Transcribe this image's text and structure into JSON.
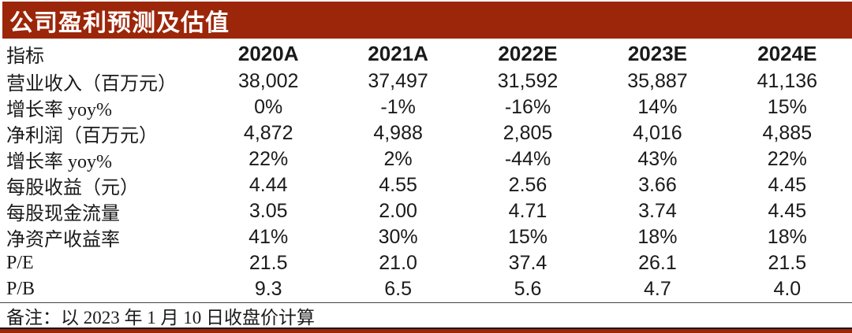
{
  "title": "公司盈利预测及估值",
  "colors": {
    "accent_red": "#9C2609",
    "divider_black": "#14141e"
  },
  "table": {
    "header": [
      "指标",
      "2020A",
      "2021A",
      "2022E",
      "2023E",
      "2024E"
    ],
    "rows": [
      {
        "label": "营业收入（百万元）",
        "values": [
          "38,002",
          "37,497",
          "31,592",
          "35,887",
          "41,136"
        ]
      },
      {
        "label": "增长率 yoy%",
        "values": [
          "0%",
          "-1%",
          "-16%",
          "14%",
          "15%"
        ]
      },
      {
        "label": "净利润（百万元）",
        "values": [
          "4,872",
          "4,988",
          "2,805",
          "4,016",
          "4,885"
        ]
      },
      {
        "label": "增长率 yoy%",
        "values": [
          "22%",
          "2%",
          "-44%",
          "43%",
          "22%"
        ]
      },
      {
        "label": "每股收益（元）",
        "values": [
          "4.44",
          "4.55",
          "2.56",
          "3.66",
          "4.45"
        ]
      },
      {
        "label": "每股现金流量",
        "values": [
          "3.05",
          "2.00",
          "4.71",
          "3.74",
          "4.45"
        ]
      },
      {
        "label": "净资产收益率",
        "values": [
          "41%",
          "30%",
          "15%",
          "18%",
          "18%"
        ]
      },
      {
        "label": "P/E",
        "values": [
          "21.5",
          "21.0",
          "37.4",
          "26.1",
          "21.5"
        ]
      },
      {
        "label": "P/B",
        "values": [
          "9.3",
          "6.5",
          "5.6",
          "4.7",
          "4.0"
        ]
      }
    ],
    "note": "备注：以 2023 年 1 月 10 日收盘价计算"
  }
}
